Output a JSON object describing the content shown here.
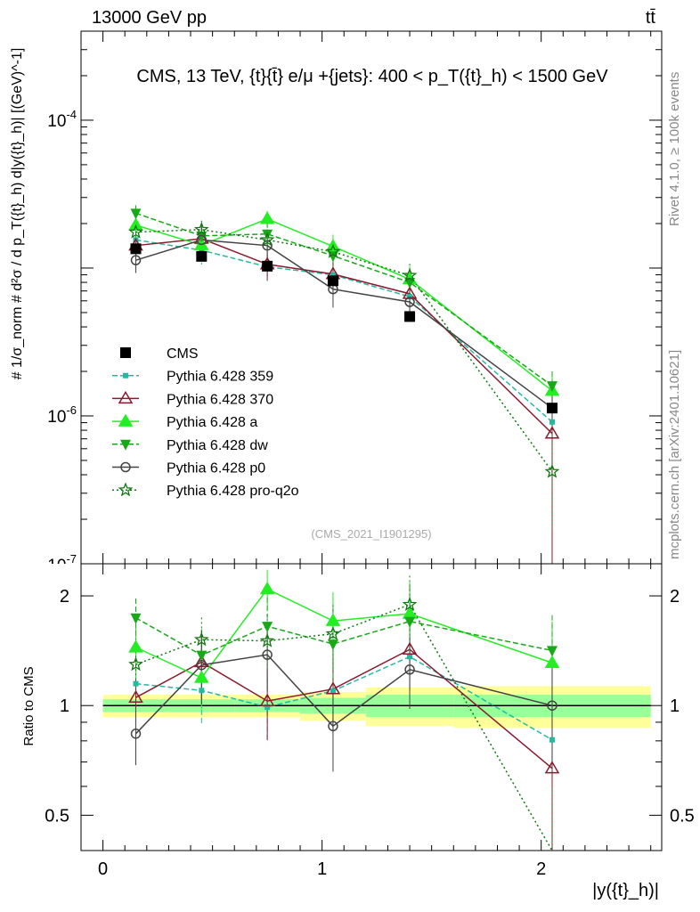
{
  "header": {
    "left": "13000 GeV pp",
    "right": "tt̄"
  },
  "side": {
    "rivet": "Rivet 4.1.0, ≥ 100k events",
    "mcplots": "mcplots.cern.ch [arXiv:2401.10621]"
  },
  "colors": {
    "cms": "#000000",
    "p359": "#22bba0",
    "p370": "#8b1a2e",
    "pa": "#22ee22",
    "pdw": "#18a818",
    "pp0": "#444444",
    "pq2o": "#117711",
    "band_outer": "#ffff99",
    "band_inner": "#99ff99"
  },
  "chart_data": {
    "type": "line",
    "title": "CMS, 13 TeV, {t}{t̄} e/μ +{jets}: 400 <  p_T({t}_h) < 1500 GeV",
    "analysis_tag": "(CMS_2021_I1901295)",
    "ylabel": "# 1/σ_norm # d²σ / d p_T({t}_h) d|y({t}_h)| [(GeV)^-1]",
    "ratio_ylabel": "Ratio to CMS",
    "xlabel": "|y({t}_h)|",
    "xlim": [
      -0.1,
      2.55
    ],
    "ylim": [
      1e-07,
      0.0004
    ],
    "ratio_ylim": [
      0.4,
      2.45
    ],
    "yscale": "log",
    "x_ticks": [
      0,
      1,
      2
    ],
    "y_ticks": [
      {
        "value": 1e-06,
        "label": "10^-6"
      },
      {
        "value": 0.0001,
        "label": "10^-4"
      }
    ],
    "y_tick_partial": "10^-7",
    "ratio_ticks": [
      0.5,
      1,
      2
    ],
    "bins": [
      {
        "lo": 0.0,
        "hi": 0.3
      },
      {
        "lo": 0.3,
        "hi": 0.6
      },
      {
        "lo": 0.6,
        "hi": 0.9
      },
      {
        "lo": 0.9,
        "hi": 1.2
      },
      {
        "lo": 1.2,
        "hi": 1.6
      },
      {
        "lo": 1.6,
        "hi": 2.5
      }
    ],
    "x": [
      0.15,
      0.45,
      0.75,
      1.05,
      1.4,
      2.05
    ],
    "data": {
      "name": "CMS",
      "values": [
        1.35e-05,
        1.2e-05,
        1.03e-05,
        8.2e-06,
        4.7e-06,
        1.13e-06
      ],
      "band_inner": [
        0.04,
        0.04,
        0.04,
        0.05,
        0.07,
        0.07
      ],
      "band_outer": [
        0.07,
        0.07,
        0.07,
        0.09,
        0.12,
        0.13
      ]
    },
    "series": [
      {
        "key": "p359",
        "name": "Pythia 6.428 359",
        "marker": "square",
        "dash": "6,3",
        "values": [
          1.55e-05,
          1.32e-05,
          1.02e-05,
          9e-06,
          6.4e-06,
          9.1e-07
        ],
        "errors": [
          0.26,
          0.2,
          0.2,
          0.2,
          0.2,
          0.5
        ]
      },
      {
        "key": "p370",
        "name": "Pythia 6.428 370",
        "marker": "triangle-open",
        "dash": "",
        "values": [
          1.42e-05,
          1.58e-05,
          1.06e-05,
          9.1e-06,
          6.7e-06,
          7.6e-07
        ],
        "errors": [
          0.25,
          0.22,
          0.22,
          0.25,
          0.22,
          0.9
        ]
      },
      {
        "key": "pa",
        "name": "Pythia 6.428 a",
        "marker": "triangle",
        "dash": "",
        "values": [
          1.95e-05,
          1.43e-05,
          2.15e-05,
          1.4e-05,
          8.4e-06,
          1.48e-06
        ],
        "errors": [
          0.18,
          0.18,
          0.13,
          0.2,
          0.22,
          0.3
        ]
      },
      {
        "key": "pdw",
        "name": "Pythia 6.428 dw",
        "marker": "triangle-down",
        "dash": "6,3",
        "values": [
          2.35e-05,
          1.65e-05,
          1.7e-05,
          1.21e-05,
          8e-06,
          1.6e-06
        ],
        "errors": [
          0.13,
          0.18,
          0.2,
          0.25,
          0.25,
          0.25
        ]
      },
      {
        "key": "pp0",
        "name": "Pythia 6.428 p0",
        "marker": "circle-open",
        "dash": "",
        "values": [
          1.13e-05,
          1.55e-05,
          1.42e-05,
          7.2e-06,
          5.9e-06,
          1.13e-06
        ],
        "errors": [
          0.18,
          0.22,
          0.2,
          0.25,
          0.22,
          0.35
        ]
      },
      {
        "key": "pq2o",
        "name": "Pythia 6.428 pro-q2o",
        "marker": "star",
        "dash": "2,3",
        "values": [
          1.75e-05,
          1.82e-05,
          1.55e-05,
          1.29e-05,
          8.9e-06,
          4.2e-07
        ],
        "errors": [
          0.15,
          0.15,
          0.18,
          0.2,
          0.2,
          0.6
        ]
      }
    ]
  }
}
